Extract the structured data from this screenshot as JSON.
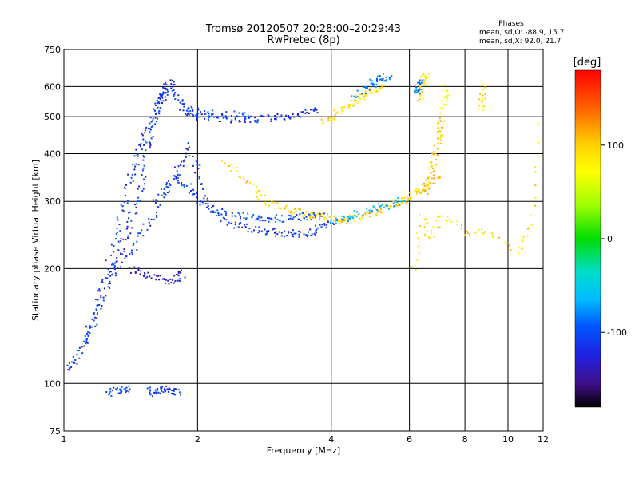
{
  "header": {
    "title": "Tromsø 20120507 20:28:00–20:29:43",
    "subtitle": "RwPretec (8p)",
    "phases_title": "Phases",
    "phases_line1": "mean, sd,O: -88.9, 15.7",
    "phases_line2": "mean, sd,X:  92.0, 21.7"
  },
  "colorbar": {
    "label": "[deg]",
    "ticks": [
      "100",
      "0",
      "-100"
    ],
    "tick_values": [
      100,
      0,
      -100
    ],
    "range": [
      -180,
      180
    ]
  },
  "chart_data": {
    "type": "scatter",
    "xlabel": "Frequency [MHz]",
    "ylabel": "Stationary phase Virtual Height [km]",
    "xscale": "log",
    "yscale": "log",
    "xlim": [
      1,
      12
    ],
    "ylim": [
      75,
      750
    ],
    "x_ticks": [
      1,
      2,
      4,
      6,
      8,
      10,
      12
    ],
    "x_tick_labels": [
      "1",
      "2",
      "4",
      "6",
      "8",
      "10",
      "12"
    ],
    "y_ticks": [
      75,
      100,
      200,
      300,
      400,
      500,
      600,
      750
    ],
    "y_tick_labels": [
      "75",
      "100",
      "200",
      "300",
      "400",
      "500",
      "600",
      "750"
    ],
    "grid": true,
    "color_encoding": "phase [deg]",
    "traces": [
      {
        "phase": -110,
        "points": [
          [
            1.0,
            108
          ],
          [
            1.05,
            115
          ],
          [
            1.1,
            125
          ],
          [
            1.15,
            140
          ],
          [
            1.2,
            160
          ],
          [
            1.25,
            185
          ],
          [
            1.3,
            205
          ],
          [
            1.35,
            230
          ],
          [
            1.4,
            260
          ],
          [
            1.45,
            300
          ],
          [
            1.5,
            350
          ],
          [
            1.55,
            420
          ],
          [
            1.6,
            500
          ],
          [
            1.65,
            560
          ],
          [
            1.7,
            600
          ],
          [
            1.75,
            620
          ]
        ]
      },
      {
        "phase": -105,
        "points": [
          [
            1.1,
            130
          ],
          [
            1.15,
            145
          ],
          [
            1.2,
            170
          ],
          [
            1.25,
            200
          ],
          [
            1.3,
            240
          ],
          [
            1.35,
            290
          ],
          [
            1.4,
            340
          ],
          [
            1.45,
            390
          ],
          [
            1.5,
            430
          ],
          [
            1.55,
            470
          ],
          [
            1.6,
            520
          ],
          [
            1.65,
            560
          ],
          [
            1.7,
            590
          ],
          [
            1.8,
            560
          ],
          [
            1.9,
            520
          ],
          [
            2.0,
            500
          ]
        ]
      },
      {
        "phase": -110,
        "points": [
          [
            1.3,
            195
          ],
          [
            1.4,
            220
          ],
          [
            1.5,
            250
          ],
          [
            1.6,
            280
          ],
          [
            1.7,
            320
          ],
          [
            1.8,
            370
          ],
          [
            1.9,
            420
          ],
          [
            2.0,
            360
          ],
          [
            2.1,
            300
          ],
          [
            2.2,
            275
          ],
          [
            2.4,
            262
          ],
          [
            2.6,
            256
          ],
          [
            2.8,
            252
          ],
          [
            3.0,
            250
          ],
          [
            3.2,
            248
          ],
          [
            3.4,
            248
          ],
          [
            3.6,
            250
          ],
          [
            3.8,
            258
          ],
          [
            4.0,
            265
          ]
        ]
      },
      {
        "phase": -100,
        "points": [
          [
            1.6,
            300
          ],
          [
            1.7,
            330
          ],
          [
            1.8,
            350
          ],
          [
            1.9,
            330
          ],
          [
            2.0,
            300
          ],
          [
            2.2,
            285
          ],
          [
            2.4,
            278
          ],
          [
            2.6,
            275
          ],
          [
            2.8,
            273
          ],
          [
            3.0,
            272
          ],
          [
            3.2,
            272
          ],
          [
            3.4,
            274
          ],
          [
            3.6,
            276
          ],
          [
            3.8,
            280
          ]
        ]
      },
      {
        "phase": -130,
        "points": [
          [
            1.4,
            200
          ],
          [
            1.5,
            195
          ],
          [
            1.6,
            190
          ],
          [
            1.7,
            185
          ],
          [
            1.8,
            190
          ],
          [
            1.85,
            195
          ]
        ]
      },
      {
        "phase": -110,
        "points": [
          [
            1.9,
            510
          ],
          [
            2.1,
            500
          ],
          [
            2.3,
            495
          ],
          [
            2.5,
            495
          ],
          [
            2.7,
            496
          ],
          [
            2.9,
            498
          ],
          [
            3.1,
            502
          ],
          [
            3.3,
            508
          ],
          [
            3.5,
            515
          ],
          [
            3.7,
            520
          ]
        ]
      },
      {
        "phase": -100,
        "points": [
          [
            1.85,
            530
          ],
          [
            2.0,
            520
          ],
          [
            2.2,
            512
          ],
          [
            2.4,
            508
          ],
          [
            2.6,
            506
          ]
        ]
      },
      {
        "phase": 100,
        "points": [
          [
            3.8,
            490
          ],
          [
            4.0,
            500
          ],
          [
            4.2,
            520
          ],
          [
            4.4,
            540
          ],
          [
            4.6,
            560
          ],
          [
            4.8,
            575
          ],
          [
            5.0,
            590
          ],
          [
            5.2,
            600
          ]
        ]
      },
      {
        "phase": -80,
        "points": [
          [
            4.5,
            570
          ],
          [
            4.8,
            600
          ],
          [
            5.0,
            620
          ],
          [
            5.2,
            640
          ],
          [
            5.4,
            630
          ]
        ]
      },
      {
        "phase": 105,
        "points": [
          [
            2.3,
            380
          ],
          [
            2.5,
            350
          ],
          [
            2.7,
            320
          ],
          [
            2.9,
            300
          ],
          [
            3.1,
            290
          ],
          [
            3.3,
            285
          ],
          [
            3.5,
            280
          ],
          [
            3.7,
            276
          ],
          [
            3.9,
            274
          ],
          [
            4.1,
            272
          ],
          [
            4.3,
            270
          ]
        ]
      },
      {
        "phase": 110,
        "points": [
          [
            4.2,
            268
          ],
          [
            4.5,
            272
          ],
          [
            4.8,
            278
          ],
          [
            5.1,
            285
          ],
          [
            5.4,
            292
          ],
          [
            5.7,
            300
          ],
          [
            6.0,
            310
          ],
          [
            6.3,
            320
          ],
          [
            6.6,
            335
          ],
          [
            6.9,
            350
          ]
        ]
      },
      {
        "phase": -60,
        "points": [
          [
            4.0,
            265
          ],
          [
            4.3,
            272
          ],
          [
            4.6,
            280
          ],
          [
            5.0,
            288
          ],
          [
            5.4,
            296
          ],
          [
            5.8,
            305
          ]
        ]
      },
      {
        "phase": 110,
        "points": [
          [
            6.4,
            315
          ],
          [
            6.55,
            335
          ],
          [
            6.7,
            360
          ],
          [
            6.8,
            390
          ],
          [
            6.9,
            420
          ],
          [
            7.0,
            460
          ],
          [
            7.05,
            500
          ]
        ]
      },
      {
        "phase": 100,
        "points": [
          [
            6.3,
            560
          ],
          [
            6.4,
            600
          ],
          [
            6.45,
            630
          ],
          [
            6.5,
            650
          ]
        ]
      },
      {
        "phase": -80,
        "points": [
          [
            6.2,
            580
          ],
          [
            6.25,
            600
          ],
          [
            6.3,
            620
          ]
        ]
      },
      {
        "phase": 80,
        "points": [
          [
            7.1,
            520
          ],
          [
            7.15,
            560
          ],
          [
            7.2,
            600
          ]
        ]
      },
      {
        "phase": 100,
        "points": [
          [
            8.7,
            520
          ],
          [
            8.75,
            560
          ],
          [
            8.8,
            600
          ]
        ]
      },
      {
        "phase": -100,
        "points": [
          [
            1.25,
            95
          ],
          [
            1.3,
            98
          ],
          [
            1.35,
            96
          ],
          [
            1.4,
            97
          ]
        ]
      },
      {
        "phase": -100,
        "points": [
          [
            1.55,
            96
          ],
          [
            1.6,
            95
          ],
          [
            1.65,
            96
          ],
          [
            1.7,
            97
          ],
          [
            1.75,
            96
          ],
          [
            1.8,
            95
          ]
        ]
      },
      {
        "phase": 100,
        "points": [
          [
            6.1,
            200
          ],
          [
            6.4,
            280
          ],
          [
            6.6,
            240
          ],
          [
            7.1,
            280
          ],
          [
            8.0,
            250
          ],
          [
            9.1,
            250
          ],
          [
            10.5,
            220
          ],
          [
            11.2,
            260
          ],
          [
            11.8,
            480
          ]
        ]
      }
    ]
  }
}
